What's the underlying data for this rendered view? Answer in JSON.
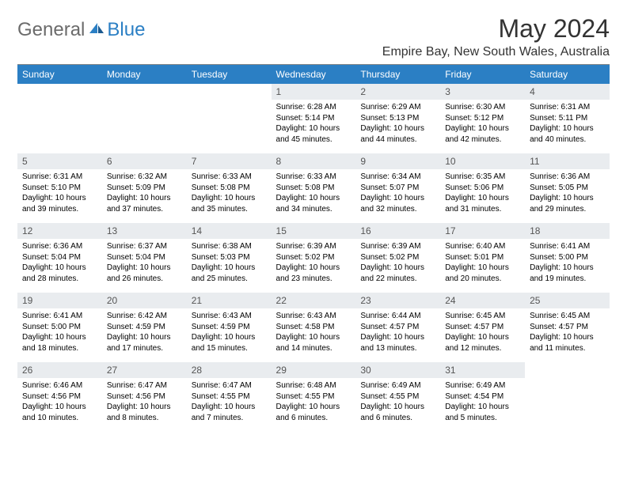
{
  "logo": {
    "text_a": "General",
    "text_b": "Blue"
  },
  "title": "May 2024",
  "location": "Empire Bay, New South Wales, Australia",
  "colors": {
    "header_bg": "#2b7fc4",
    "header_fg": "#ffffff",
    "daynum_bg": "#e9ecef",
    "daynum_fg": "#555555",
    "body_bg": "#ffffff",
    "logo_gray": "#6b6b6b",
    "logo_blue": "#2b7fc4"
  },
  "typography": {
    "title_fontsize": 32,
    "location_fontsize": 16,
    "th_fontsize": 12,
    "daynum_fontsize": 12,
    "content_fontsize": 10
  },
  "weekday_labels": [
    "Sunday",
    "Monday",
    "Tuesday",
    "Wednesday",
    "Thursday",
    "Friday",
    "Saturday"
  ],
  "weeks": [
    [
      null,
      null,
      null,
      {
        "n": "1",
        "sunrise": "Sunrise: 6:28 AM",
        "sunset": "Sunset: 5:14 PM",
        "daylight": "Daylight: 10 hours and 45 minutes."
      },
      {
        "n": "2",
        "sunrise": "Sunrise: 6:29 AM",
        "sunset": "Sunset: 5:13 PM",
        "daylight": "Daylight: 10 hours and 44 minutes."
      },
      {
        "n": "3",
        "sunrise": "Sunrise: 6:30 AM",
        "sunset": "Sunset: 5:12 PM",
        "daylight": "Daylight: 10 hours and 42 minutes."
      },
      {
        "n": "4",
        "sunrise": "Sunrise: 6:31 AM",
        "sunset": "Sunset: 5:11 PM",
        "daylight": "Daylight: 10 hours and 40 minutes."
      }
    ],
    [
      {
        "n": "5",
        "sunrise": "Sunrise: 6:31 AM",
        "sunset": "Sunset: 5:10 PM",
        "daylight": "Daylight: 10 hours and 39 minutes."
      },
      {
        "n": "6",
        "sunrise": "Sunrise: 6:32 AM",
        "sunset": "Sunset: 5:09 PM",
        "daylight": "Daylight: 10 hours and 37 minutes."
      },
      {
        "n": "7",
        "sunrise": "Sunrise: 6:33 AM",
        "sunset": "Sunset: 5:08 PM",
        "daylight": "Daylight: 10 hours and 35 minutes."
      },
      {
        "n": "8",
        "sunrise": "Sunrise: 6:33 AM",
        "sunset": "Sunset: 5:08 PM",
        "daylight": "Daylight: 10 hours and 34 minutes."
      },
      {
        "n": "9",
        "sunrise": "Sunrise: 6:34 AM",
        "sunset": "Sunset: 5:07 PM",
        "daylight": "Daylight: 10 hours and 32 minutes."
      },
      {
        "n": "10",
        "sunrise": "Sunrise: 6:35 AM",
        "sunset": "Sunset: 5:06 PM",
        "daylight": "Daylight: 10 hours and 31 minutes."
      },
      {
        "n": "11",
        "sunrise": "Sunrise: 6:36 AM",
        "sunset": "Sunset: 5:05 PM",
        "daylight": "Daylight: 10 hours and 29 minutes."
      }
    ],
    [
      {
        "n": "12",
        "sunrise": "Sunrise: 6:36 AM",
        "sunset": "Sunset: 5:04 PM",
        "daylight": "Daylight: 10 hours and 28 minutes."
      },
      {
        "n": "13",
        "sunrise": "Sunrise: 6:37 AM",
        "sunset": "Sunset: 5:04 PM",
        "daylight": "Daylight: 10 hours and 26 minutes."
      },
      {
        "n": "14",
        "sunrise": "Sunrise: 6:38 AM",
        "sunset": "Sunset: 5:03 PM",
        "daylight": "Daylight: 10 hours and 25 minutes."
      },
      {
        "n": "15",
        "sunrise": "Sunrise: 6:39 AM",
        "sunset": "Sunset: 5:02 PM",
        "daylight": "Daylight: 10 hours and 23 minutes."
      },
      {
        "n": "16",
        "sunrise": "Sunrise: 6:39 AM",
        "sunset": "Sunset: 5:02 PM",
        "daylight": "Daylight: 10 hours and 22 minutes."
      },
      {
        "n": "17",
        "sunrise": "Sunrise: 6:40 AM",
        "sunset": "Sunset: 5:01 PM",
        "daylight": "Daylight: 10 hours and 20 minutes."
      },
      {
        "n": "18",
        "sunrise": "Sunrise: 6:41 AM",
        "sunset": "Sunset: 5:00 PM",
        "daylight": "Daylight: 10 hours and 19 minutes."
      }
    ],
    [
      {
        "n": "19",
        "sunrise": "Sunrise: 6:41 AM",
        "sunset": "Sunset: 5:00 PM",
        "daylight": "Daylight: 10 hours and 18 minutes."
      },
      {
        "n": "20",
        "sunrise": "Sunrise: 6:42 AM",
        "sunset": "Sunset: 4:59 PM",
        "daylight": "Daylight: 10 hours and 17 minutes."
      },
      {
        "n": "21",
        "sunrise": "Sunrise: 6:43 AM",
        "sunset": "Sunset: 4:59 PM",
        "daylight": "Daylight: 10 hours and 15 minutes."
      },
      {
        "n": "22",
        "sunrise": "Sunrise: 6:43 AM",
        "sunset": "Sunset: 4:58 PM",
        "daylight": "Daylight: 10 hours and 14 minutes."
      },
      {
        "n": "23",
        "sunrise": "Sunrise: 6:44 AM",
        "sunset": "Sunset: 4:57 PM",
        "daylight": "Daylight: 10 hours and 13 minutes."
      },
      {
        "n": "24",
        "sunrise": "Sunrise: 6:45 AM",
        "sunset": "Sunset: 4:57 PM",
        "daylight": "Daylight: 10 hours and 12 minutes."
      },
      {
        "n": "25",
        "sunrise": "Sunrise: 6:45 AM",
        "sunset": "Sunset: 4:57 PM",
        "daylight": "Daylight: 10 hours and 11 minutes."
      }
    ],
    [
      {
        "n": "26",
        "sunrise": "Sunrise: 6:46 AM",
        "sunset": "Sunset: 4:56 PM",
        "daylight": "Daylight: 10 hours and 10 minutes."
      },
      {
        "n": "27",
        "sunrise": "Sunrise: 6:47 AM",
        "sunset": "Sunset: 4:56 PM",
        "daylight": "Daylight: 10 hours and 8 minutes."
      },
      {
        "n": "28",
        "sunrise": "Sunrise: 6:47 AM",
        "sunset": "Sunset: 4:55 PM",
        "daylight": "Daylight: 10 hours and 7 minutes."
      },
      {
        "n": "29",
        "sunrise": "Sunrise: 6:48 AM",
        "sunset": "Sunset: 4:55 PM",
        "daylight": "Daylight: 10 hours and 6 minutes."
      },
      {
        "n": "30",
        "sunrise": "Sunrise: 6:49 AM",
        "sunset": "Sunset: 4:55 PM",
        "daylight": "Daylight: 10 hours and 6 minutes."
      },
      {
        "n": "31",
        "sunrise": "Sunrise: 6:49 AM",
        "sunset": "Sunset: 4:54 PM",
        "daylight": "Daylight: 10 hours and 5 minutes."
      },
      null
    ]
  ]
}
